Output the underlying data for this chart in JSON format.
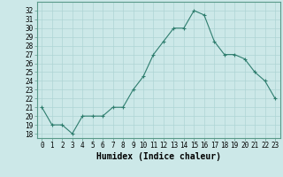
{
  "x": [
    0,
    1,
    2,
    3,
    4,
    5,
    6,
    7,
    8,
    9,
    10,
    11,
    12,
    13,
    14,
    15,
    16,
    17,
    18,
    19,
    20,
    21,
    22,
    23
  ],
  "y": [
    21,
    19,
    19,
    18,
    20,
    20,
    20,
    21,
    21,
    23,
    24.5,
    27,
    28.5,
    30,
    30,
    32,
    31.5,
    28.5,
    27,
    27,
    26.5,
    25,
    24,
    22
  ],
  "line_color": "#2e7d6e",
  "marker": "+",
  "marker_size": 3,
  "bg_color": "#cce8e8",
  "grid_color": "#aed4d4",
  "xlabel": "Humidex (Indice chaleur)",
  "xlim": [
    -0.5,
    23.5
  ],
  "ylim": [
    17.5,
    33.0
  ],
  "yticks": [
    18,
    19,
    20,
    21,
    22,
    23,
    24,
    25,
    26,
    27,
    28,
    29,
    30,
    31,
    32
  ],
  "xticks": [
    0,
    1,
    2,
    3,
    4,
    5,
    6,
    7,
    8,
    9,
    10,
    11,
    12,
    13,
    14,
    15,
    16,
    17,
    18,
    19,
    20,
    21,
    22,
    23
  ],
  "tick_fontsize": 5.5,
  "label_fontsize": 7
}
